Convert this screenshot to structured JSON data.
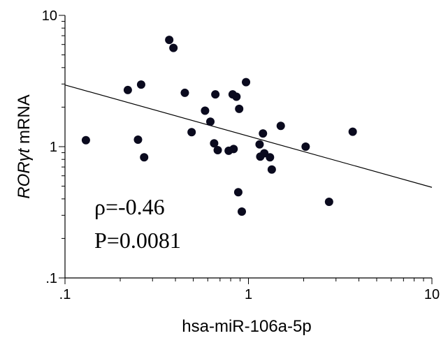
{
  "chart_data": {
    "type": "scatter",
    "xlabel": "hsa-miR-106a-5p",
    "ylabel_italic": "RORγt",
    "ylabel_rest": " mRNA",
    "xscale": "log",
    "yscale": "log",
    "xlim": [
      0.1,
      10
    ],
    "ylim": [
      0.1,
      10
    ],
    "x_tick_labels": [
      ".1",
      "1",
      "10"
    ],
    "y_tick_labels": [
      ".1",
      "1",
      "10"
    ],
    "grid": false,
    "annotations": [
      "ρ=-0.46",
      "P=0.0081"
    ],
    "trendline": {
      "x": [
        0.1,
        10
      ],
      "y": [
        2.95,
        0.49
      ]
    },
    "points": [
      {
        "x": 0.13,
        "y": 1.12
      },
      {
        "x": 0.22,
        "y": 2.7
      },
      {
        "x": 0.25,
        "y": 1.13
      },
      {
        "x": 0.26,
        "y": 2.97
      },
      {
        "x": 0.27,
        "y": 0.83
      },
      {
        "x": 0.37,
        "y": 6.5
      },
      {
        "x": 0.39,
        "y": 5.65
      },
      {
        "x": 0.45,
        "y": 2.57
      },
      {
        "x": 0.49,
        "y": 1.29
      },
      {
        "x": 0.58,
        "y": 1.88
      },
      {
        "x": 0.62,
        "y": 1.55
      },
      {
        "x": 0.65,
        "y": 1.06
      },
      {
        "x": 0.66,
        "y": 2.5
      },
      {
        "x": 0.68,
        "y": 0.94
      },
      {
        "x": 0.78,
        "y": 0.93
      },
      {
        "x": 0.82,
        "y": 2.5
      },
      {
        "x": 0.83,
        "y": 0.96
      },
      {
        "x": 0.86,
        "y": 2.4
      },
      {
        "x": 0.88,
        "y": 0.45
      },
      {
        "x": 0.89,
        "y": 1.94
      },
      {
        "x": 0.92,
        "y": 0.32
      },
      {
        "x": 0.97,
        "y": 3.1
      },
      {
        "x": 1.15,
        "y": 1.04
      },
      {
        "x": 1.16,
        "y": 0.84
      },
      {
        "x": 1.2,
        "y": 1.26
      },
      {
        "x": 1.22,
        "y": 0.89
      },
      {
        "x": 1.31,
        "y": 0.83
      },
      {
        "x": 1.34,
        "y": 0.67
      },
      {
        "x": 1.5,
        "y": 1.44
      },
      {
        "x": 2.05,
        "y": 1.0
      },
      {
        "x": 2.75,
        "y": 0.38
      },
      {
        "x": 3.7,
        "y": 1.3
      }
    ]
  }
}
